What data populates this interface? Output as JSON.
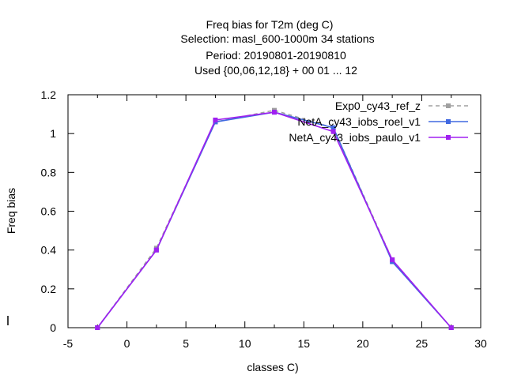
{
  "chart_data": {
    "type": "line",
    "title_lines": [
      "Freq bias  for T2m (deg C)",
      "Selection: masl_600-1000m     34 stations",
      "Period: 20190801-20190810",
      "Used {00,06,12,18} + 00 01 ... 12"
    ],
    "xlabel": "classes C)",
    "ylabel": "Freq bias",
    "xlim": [
      -5,
      30
    ],
    "ylim": [
      0,
      1.2
    ],
    "xticks": [
      "-5",
      "0",
      "5",
      "10",
      "15",
      "20",
      "25",
      "30"
    ],
    "yticks": [
      "0",
      "0.2",
      "0.4",
      "0.6",
      "0.8",
      "1",
      "1.2"
    ],
    "legend_position": "top-right",
    "series": [
      {
        "name": "Exp0_cy43_ref_z",
        "color": "#a0a0a0",
        "dash": "dashed",
        "x": [
          -2.5,
          2.5,
          7.5,
          12.5,
          17.5,
          22.5,
          27.5
        ],
        "y": [
          0.0,
          0.41,
          1.06,
          1.12,
          1.03,
          0.35,
          0.0
        ]
      },
      {
        "name": "NetA_cy43_iobs_roel_v1",
        "color": "#4169e1",
        "dash": "solid",
        "x": [
          -2.5,
          2.5,
          7.5,
          12.5,
          17.5,
          22.5,
          27.5
        ],
        "y": [
          0.0,
          0.4,
          1.06,
          1.11,
          1.03,
          0.34,
          0.0
        ]
      },
      {
        "name": "NetA_cy43_iobs_paulo_v1",
        "color": "#a020f0",
        "dash": "solid",
        "x": [
          -2.5,
          2.5,
          7.5,
          12.5,
          17.5,
          22.5,
          27.5
        ],
        "y": [
          0.0,
          0.4,
          1.07,
          1.11,
          1.01,
          0.35,
          0.0
        ]
      }
    ]
  }
}
